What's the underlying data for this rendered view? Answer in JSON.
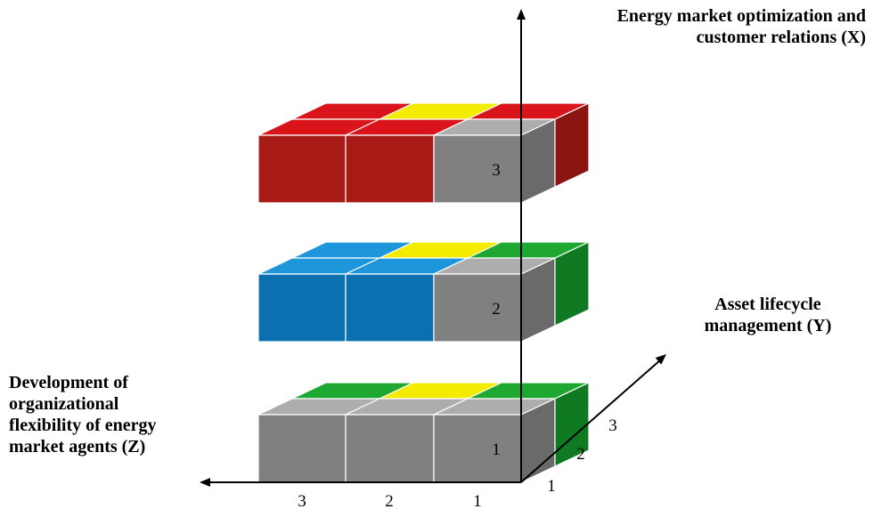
{
  "axes": {
    "x": {
      "label_lines": [
        "Energy market optimization and",
        "customer relations (X)"
      ]
    },
    "y": {
      "label_lines": [
        "Asset lifecycle",
        "management (Y)"
      ],
      "ticks": [
        "1",
        "2",
        "3"
      ]
    },
    "z": {
      "label_lines": [
        "Development of",
        "organizational",
        "flexibility of energy",
        "market agents (Z)"
      ],
      "ticks": [
        "3",
        "2",
        "1"
      ]
    }
  },
  "layers": [
    {
      "level": "1",
      "grid": [
        [
          "green",
          "yellow",
          "green"
        ],
        [
          "grey",
          "grey",
          "grey"
        ]
      ]
    },
    {
      "level": "2",
      "grid": [
        [
          "blue",
          "yellow",
          "green"
        ],
        [
          "blue",
          "blue",
          "grey"
        ]
      ]
    },
    {
      "level": "3",
      "grid": [
        [
          "red",
          "yellow",
          "red"
        ],
        [
          "red",
          "red",
          "grey"
        ]
      ]
    }
  ],
  "colors": {
    "red": {
      "top": "#d9141b",
      "front": "#a81a16",
      "side": "#8a1410"
    },
    "blue": {
      "top": "#1e96dc",
      "front": "#0a70b0",
      "side": "#0a5c92"
    },
    "green": {
      "top": "#1ea832",
      "front": "#168a28",
      "side": "#0f7a22"
    },
    "grey": {
      "top": "#adadad",
      "front": "#808080",
      "side": "#6a6a6a"
    },
    "yellow": {
      "top": "#f4ec00"
    }
  }
}
